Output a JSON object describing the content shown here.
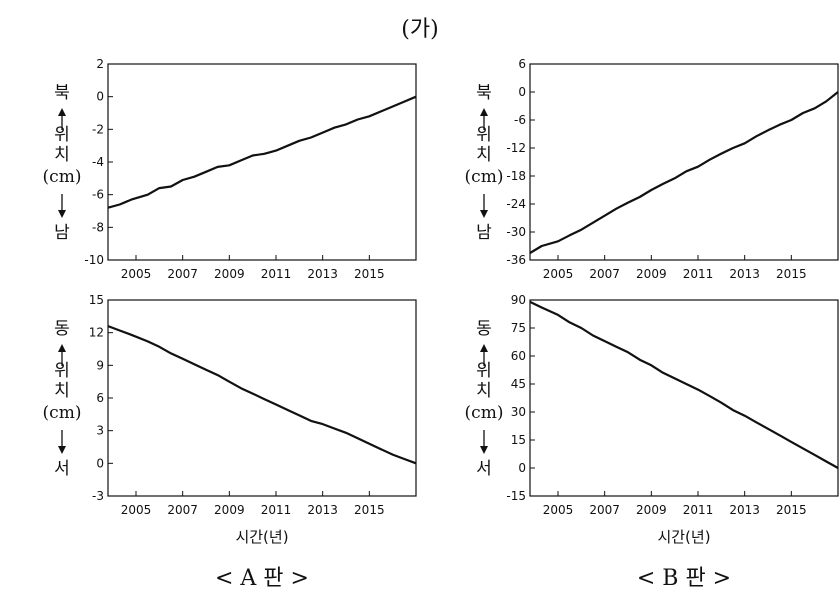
{
  "figure_label": "(가)",
  "x_axis_label": "시간(년)",
  "panels": {
    "a": {
      "caption": "< A 판 >"
    },
    "b": {
      "caption": "< B 판 >"
    }
  },
  "chart_data": [
    {
      "id": "a-ns",
      "type": "line",
      "xlim": [
        2003.8,
        2017.0
      ],
      "ylim": [
        -10,
        2
      ],
      "x_ticks": [
        2005,
        2007,
        2009,
        2011,
        2013,
        2015
      ],
      "y_ticks": [
        -10,
        -8,
        -6,
        -4,
        -2,
        0,
        2
      ],
      "ylabel_top": "북",
      "ylabel_bottom": "남",
      "ylabel_mid": [
        "위",
        "치",
        "(cm)"
      ],
      "series": [
        {
          "x": [
            2003.8,
            2004.3,
            2004.8,
            2005.5,
            2006.0,
            2006.5,
            2007.0,
            2007.5,
            2008.0,
            2008.5,
            2009.0,
            2009.5,
            2010.0,
            2010.5,
            2011.0,
            2011.5,
            2012.0,
            2012.5,
            2013.0,
            2013.5,
            2014.0,
            2014.5,
            2015.0,
            2015.5,
            2016.0,
            2016.5,
            2017.0
          ],
          "y": [
            -6.8,
            -6.6,
            -6.3,
            -6.0,
            -5.6,
            -5.5,
            -5.1,
            -4.9,
            -4.6,
            -4.3,
            -4.2,
            -3.9,
            -3.6,
            -3.5,
            -3.3,
            -3.0,
            -2.7,
            -2.5,
            -2.2,
            -1.9,
            -1.7,
            -1.4,
            -1.2,
            -0.9,
            -0.6,
            -0.3,
            0.0
          ]
        }
      ]
    },
    {
      "id": "b-ns",
      "type": "line",
      "xlim": [
        2003.8,
        2017.0
      ],
      "ylim": [
        -36,
        6
      ],
      "x_ticks": [
        2005,
        2007,
        2009,
        2011,
        2013,
        2015
      ],
      "y_ticks": [
        -36,
        -30,
        -24,
        -18,
        -12,
        -6,
        0,
        6
      ],
      "ylabel_top": "북",
      "ylabel_bottom": "남",
      "ylabel_mid": [
        "위",
        "치",
        "(cm)"
      ],
      "series": [
        {
          "x": [
            2003.8,
            2004.3,
            2005.0,
            2005.5,
            2006.0,
            2006.5,
            2007.0,
            2007.5,
            2008.0,
            2008.5,
            2009.0,
            2009.5,
            2010.0,
            2010.5,
            2011.0,
            2011.5,
            2012.0,
            2012.5,
            2013.0,
            2013.5,
            2014.0,
            2014.5,
            2015.0,
            2015.5,
            2016.0,
            2016.5,
            2017.0
          ],
          "y": [
            -34.5,
            -33.0,
            -32.0,
            -30.7,
            -29.5,
            -28.0,
            -26.5,
            -25.0,
            -23.7,
            -22.5,
            -21.0,
            -19.7,
            -18.5,
            -17.0,
            -16.0,
            -14.5,
            -13.2,
            -12.0,
            -11.0,
            -9.5,
            -8.2,
            -7.0,
            -6.0,
            -4.5,
            -3.5,
            -2.0,
            0.0
          ]
        }
      ]
    },
    {
      "id": "a-ew",
      "type": "line",
      "xlim": [
        2003.8,
        2017.0
      ],
      "ylim": [
        -3,
        15
      ],
      "x_ticks": [
        2005,
        2007,
        2009,
        2011,
        2013,
        2015
      ],
      "y_ticks": [
        -3,
        0,
        3,
        6,
        9,
        12,
        15
      ],
      "ylabel_top": "동",
      "ylabel_bottom": "서",
      "ylabel_mid": [
        "위",
        "치",
        "(cm)"
      ],
      "series": [
        {
          "x": [
            2003.8,
            2004.3,
            2004.8,
            2005.5,
            2006.0,
            2006.5,
            2007.0,
            2007.5,
            2008.0,
            2008.5,
            2009.0,
            2009.5,
            2010.0,
            2010.5,
            2011.0,
            2011.5,
            2012.0,
            2012.5,
            2013.0,
            2013.5,
            2014.0,
            2014.5,
            2015.0,
            2015.5,
            2016.0,
            2016.5,
            2017.0
          ],
          "y": [
            12.6,
            12.2,
            11.8,
            11.2,
            10.7,
            10.1,
            9.6,
            9.1,
            8.6,
            8.1,
            7.5,
            6.9,
            6.4,
            5.9,
            5.4,
            4.9,
            4.4,
            3.9,
            3.6,
            3.2,
            2.8,
            2.3,
            1.8,
            1.3,
            0.8,
            0.4,
            0.0
          ]
        }
      ]
    },
    {
      "id": "b-ew",
      "type": "line",
      "xlim": [
        2003.8,
        2017.0
      ],
      "ylim": [
        -15,
        90
      ],
      "x_ticks": [
        2005,
        2007,
        2009,
        2011,
        2013,
        2015
      ],
      "y_ticks": [
        -15,
        0,
        15,
        30,
        45,
        60,
        75,
        90
      ],
      "ylabel_top": "동",
      "ylabel_bottom": "서",
      "ylabel_mid": [
        "위",
        "치",
        "(cm)"
      ],
      "series": [
        {
          "x": [
            2003.8,
            2004.3,
            2005.0,
            2005.5,
            2006.0,
            2006.5,
            2007.0,
            2007.5,
            2008.0,
            2008.5,
            2009.0,
            2009.5,
            2010.0,
            2010.5,
            2011.0,
            2011.5,
            2012.0,
            2012.5,
            2013.0,
            2013.5,
            2014.0,
            2014.5,
            2015.0,
            2015.5,
            2016.0,
            2016.5,
            2017.0
          ],
          "y": [
            89,
            86,
            82,
            78,
            75,
            71,
            68,
            65,
            62,
            58,
            55,
            51,
            48,
            45,
            42,
            38.5,
            35,
            31,
            28,
            24.5,
            21,
            17.5,
            14,
            10.5,
            7,
            3.5,
            0
          ]
        }
      ]
    }
  ]
}
